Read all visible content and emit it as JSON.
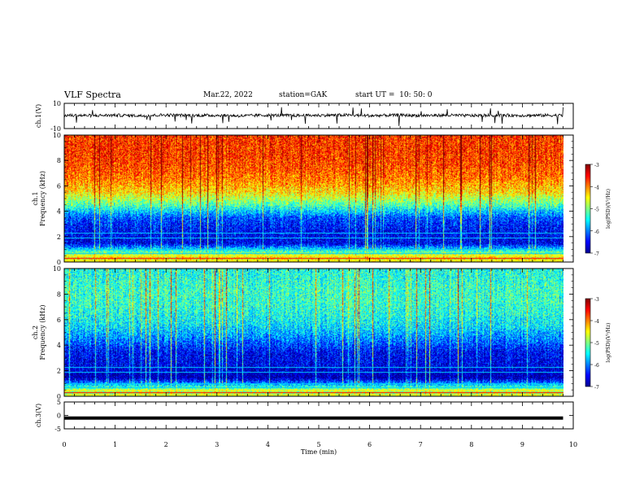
{
  "header": {
    "title": "VLF Spectra",
    "date": "Mar.22, 2022",
    "station": "station=GAK",
    "start": "start UT =  10: 50: 0"
  },
  "colors": {
    "jet": [
      "#00008f",
      "#0000ff",
      "#0080ff",
      "#00ffff",
      "#80ff80",
      "#ffff00",
      "#ff8000",
      "#ff0000",
      "#800000"
    ],
    "trace": "#000000"
  },
  "chart_data": [
    {
      "type": "line",
      "panel": "ch1-waveform",
      "ylabel": "ch.1(V)",
      "ylim": [
        -10,
        10
      ],
      "yticks": [
        "10",
        "-10"
      ],
      "x": [
        0,
        0.5,
        1,
        1.5,
        2,
        2.5,
        3,
        3.5,
        4,
        4.5,
        5,
        5.5,
        6,
        6.5,
        7,
        7.5,
        8,
        8.5,
        9,
        9.5,
        9.8
      ],
      "y": [
        0.5,
        0.3,
        0.6,
        0.2,
        0.8,
        0.4,
        0.5,
        0.1,
        0.6,
        0.3,
        0.5,
        0.7,
        0.2,
        0.6,
        0.4,
        0.5,
        0.3,
        0.6,
        0.4,
        0.5,
        0.4
      ]
    },
    {
      "type": "heatmap",
      "panel": "ch1-spectrogram",
      "ylabel": "ch.1\nFrequency (kHz)",
      "ylim": [
        0,
        10
      ],
      "yticks": [
        "0",
        "2",
        "4",
        "6",
        "8",
        "10"
      ],
      "xlim": [
        0,
        10
      ],
      "colorbar": {
        "label": "log(PSD)(V²/Hz)",
        "range": [
          -7,
          -3
        ],
        "ticks": [
          "-3",
          "-4",
          "-5",
          "-6",
          "-7"
        ]
      },
      "freq_kHz": [
        0.5,
        1.5,
        2.5,
        3.5,
        4.5,
        5.5,
        6.5,
        7.5,
        8.5,
        9.5
      ],
      "mean_log_psd": [
        -4.5,
        -6.6,
        -6.5,
        -6.2,
        -5.2,
        -4.4,
        -4.0,
        -3.8,
        -3.7,
        -3.7
      ]
    },
    {
      "type": "heatmap",
      "panel": "ch2-spectrogram",
      "ylabel": "ch.2\nFrequency (kHz)",
      "ylim": [
        0,
        10
      ],
      "yticks": [
        "0",
        "2",
        "4",
        "6",
        "8",
        "10"
      ],
      "xlim": [
        0,
        10
      ],
      "colorbar": {
        "label": "log(PSD)(V²/Hz)",
        "range": [
          -7,
          -3
        ],
        "ticks": [
          "-3",
          "-4",
          "-5",
          "-6",
          "-7"
        ]
      },
      "freq_kHz": [
        0.5,
        1.5,
        2.5,
        3.5,
        4.5,
        5.5,
        6.5,
        7.5,
        8.5,
        9.5
      ],
      "mean_log_psd": [
        -4.8,
        -6.9,
        -6.6,
        -6.5,
        -6.0,
        -5.6,
        -5.4,
        -5.3,
        -5.3,
        -5.4
      ]
    },
    {
      "type": "line",
      "panel": "ch3-waveform",
      "ylabel": "ch.3(V)",
      "ylim": [
        -5,
        5
      ],
      "yticks": [
        "5",
        "0",
        "-5"
      ],
      "x": [
        0,
        9.8
      ],
      "y": [
        -1,
        -1
      ]
    }
  ],
  "xaxis": {
    "label": "Time (min)",
    "ticks": [
      "0",
      "1",
      "2",
      "3",
      "4",
      "5",
      "6",
      "7",
      "8",
      "9",
      "10"
    ],
    "range": [
      0,
      10
    ]
  }
}
